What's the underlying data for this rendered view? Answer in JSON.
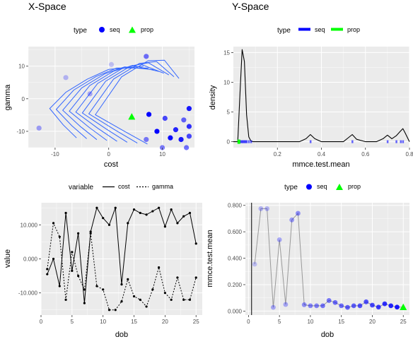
{
  "colors": {
    "panel_bg": "#ebebeb",
    "grid_major": "#ffffff",
    "seq_blue": "#0000ff",
    "prop_green": "#00ff00",
    "contour": "#3366ff",
    "line": "#000000",
    "grey_line": "#999999"
  },
  "chart_data": [
    {
      "id": "x-space",
      "type": "scatter",
      "title": "X-Space",
      "xlabel": "cost",
      "ylabel": "gamma",
      "xlim": [
        -15,
        16
      ],
      "ylim": [
        -15,
        16
      ],
      "xticks": [
        -10,
        0,
        10
      ],
      "yticks": [
        -10,
        0,
        10
      ],
      "legend": {
        "title": "type",
        "position": "top",
        "entries": [
          {
            "label": "seq",
            "shape": "circle",
            "color": "#0000ff"
          },
          {
            "label": "prop",
            "shape": "triangle",
            "color": "#00ff00"
          }
        ]
      },
      "series": [
        {
          "name": "seq",
          "points": [
            {
              "x": 7.0,
              "y": 13.0,
              "alpha": 0.55
            },
            {
              "x": -8.0,
              "y": 6.5,
              "alpha": 0.25
            },
            {
              "x": 0.5,
              "y": 10.5,
              "alpha": 0.2
            },
            {
              "x": -3.5,
              "y": 1.5,
              "alpha": 0.3
            },
            {
              "x": -13.0,
              "y": -9.0,
              "alpha": 0.35
            },
            {
              "x": 7.5,
              "y": -4.8,
              "alpha": 1.0
            },
            {
              "x": 15.0,
              "y": -3.0,
              "alpha": 0.9
            },
            {
              "x": 14.0,
              "y": -6.5,
              "alpha": 0.6
            },
            {
              "x": 10.5,
              "y": -6.0,
              "alpha": 0.7
            },
            {
              "x": 15.0,
              "y": -8.5,
              "alpha": 0.8
            },
            {
              "x": 9.0,
              "y": -10.0,
              "alpha": 1.0
            },
            {
              "x": 12.5,
              "y": -9.5,
              "alpha": 0.85
            },
            {
              "x": 11.5,
              "y": -12.0,
              "alpha": 0.95
            },
            {
              "x": 13.5,
              "y": -12.5,
              "alpha": 0.9
            },
            {
              "x": 15.0,
              "y": -11.5,
              "alpha": 0.7
            },
            {
              "x": 7.0,
              "y": -12.5,
              "alpha": 0.5
            },
            {
              "x": 10.0,
              "y": -15.0,
              "alpha": 0.5
            },
            {
              "x": 14.5,
              "y": -15.0,
              "alpha": 0.55
            }
          ]
        },
        {
          "name": "prop",
          "points": [
            {
              "x": 4.3,
              "y": -5.5
            }
          ]
        }
      ]
    },
    {
      "id": "y-space",
      "type": "line",
      "title": "Y-Space",
      "xlabel": "mmce.test.mean",
      "ylabel": "density",
      "xlim": [
        0.0,
        0.8
      ],
      "ylim": [
        -1,
        16
      ],
      "xticks": [
        0.2,
        0.4,
        0.6,
        0.8
      ],
      "xtick_labels": [
        "0.2",
        "0.4",
        "0.6",
        "0.8"
      ],
      "yticks": [
        0,
        5,
        10,
        15
      ],
      "legend": {
        "title": "type",
        "position": "top",
        "entries": [
          {
            "label": "seq",
            "shape": "line",
            "color": "#0000ff"
          },
          {
            "label": "prop",
            "shape": "line",
            "color": "#00ff00"
          }
        ]
      },
      "density": {
        "x": [
          0.0,
          0.02,
          0.03,
          0.04,
          0.05,
          0.06,
          0.07,
          0.08,
          0.09,
          0.1,
          0.15,
          0.2,
          0.3,
          0.33,
          0.35,
          0.37,
          0.4,
          0.5,
          0.52,
          0.54,
          0.56,
          0.6,
          0.65,
          0.68,
          0.7,
          0.72,
          0.74,
          0.76,
          0.77,
          0.78,
          0.8
        ],
        "y": [
          0.0,
          0.0,
          8.0,
          15.5,
          13.5,
          4.5,
          0.8,
          0.1,
          0.0,
          0.0,
          0.0,
          0.0,
          0.0,
          0.5,
          1.2,
          0.5,
          0.0,
          0.0,
          0.6,
          1.2,
          0.4,
          0.0,
          0.0,
          0.5,
          1.1,
          0.5,
          1.0,
          1.8,
          2.2,
          1.5,
          0.0
        ]
      },
      "rug_seq": [
        0.03,
        0.035,
        0.04,
        0.045,
        0.05,
        0.055,
        0.06,
        0.07,
        0.08,
        0.35,
        0.54,
        0.7,
        0.74,
        0.76,
        0.77
      ],
      "rug_prop": [
        0.025
      ]
    },
    {
      "id": "trace",
      "type": "line",
      "xlabel": "dob",
      "ylabel": "value",
      "xlim": [
        0,
        26
      ],
      "ylim": [
        -16500,
        16500
      ],
      "xticks": [
        0,
        5,
        10,
        15,
        20,
        25
      ],
      "yticks": [
        -10000,
        0,
        10000
      ],
      "ytick_labels": [
        "-10.000",
        "0.000",
        "10.000"
      ],
      "legend": {
        "title": "variable",
        "position": "top",
        "entries": [
          {
            "label": "cost",
            "shape": "solid",
            "color": "#000000"
          },
          {
            "label": "gamma",
            "shape": "dashed",
            "color": "#000000"
          }
        ]
      },
      "x": [
        1,
        2,
        3,
        4,
        5,
        6,
        7,
        8,
        9,
        10,
        11,
        12,
        13,
        14,
        15,
        16,
        17,
        18,
        19,
        20,
        21,
        22,
        23,
        24,
        25
      ],
      "series": [
        {
          "name": "cost",
          "dash": "solid",
          "values": [
            -4500,
            0,
            -8000,
            13500,
            -3500,
            7500,
            -13000,
            8000,
            15000,
            12000,
            10000,
            15000,
            -7500,
            10500,
            14500,
            13500,
            13000,
            14000,
            15000,
            9500,
            14500,
            10500,
            12500,
            13500,
            4500
          ]
        },
        {
          "name": "gamma",
          "dash": "dashed",
          "values": [
            -3000,
            10500,
            6500,
            -12000,
            2000,
            -5000,
            -9000,
            7500,
            -8000,
            -9000,
            -15000,
            -15000,
            -12500,
            -6000,
            -11000,
            -12000,
            -14000,
            -9000,
            -2500,
            -10000,
            -12000,
            -5500,
            -12000,
            -12000,
            -5500
          ]
        }
      ]
    },
    {
      "id": "mmce",
      "type": "scatter",
      "xlabel": "dob",
      "ylabel": "mmce.test.mean",
      "xlim": [
        -0.5,
        26
      ],
      "ylim": [
        -0.03,
        0.82
      ],
      "xticks": [
        0,
        5,
        10,
        15,
        20,
        25
      ],
      "yticks": [
        0.0,
        0.2,
        0.4,
        0.6,
        0.8
      ],
      "ytick_labels": [
        "0.000",
        "0.200",
        "0.400",
        "0.600",
        "0.800"
      ],
      "vline_x": 0.5,
      "legend": {
        "title": "type",
        "position": "top",
        "entries": [
          {
            "label": "seq",
            "shape": "circle",
            "color": "#0000ff"
          },
          {
            "label": "prop",
            "shape": "triangle",
            "color": "#00ff00"
          }
        ]
      },
      "x": [
        1,
        2,
        3,
        4,
        5,
        6,
        7,
        8,
        9,
        10,
        11,
        12,
        13,
        14,
        15,
        16,
        17,
        18,
        19,
        20,
        21,
        22,
        23,
        24,
        25
      ],
      "values": [
        0.355,
        0.775,
        0.775,
        0.028,
        0.54,
        0.05,
        0.69,
        0.74,
        0.048,
        0.04,
        0.04,
        0.04,
        0.08,
        0.065,
        0.04,
        0.028,
        0.04,
        0.04,
        0.07,
        0.045,
        0.03,
        0.055,
        0.04,
        0.03,
        0.03
      ],
      "alphas": [
        0.2,
        0.25,
        0.25,
        0.3,
        0.3,
        0.3,
        0.35,
        0.4,
        0.4,
        0.45,
        0.45,
        0.5,
        0.5,
        0.55,
        0.55,
        0.6,
        0.6,
        0.65,
        0.65,
        0.7,
        0.75,
        0.8,
        0.85,
        0.9,
        1.0
      ],
      "types": [
        "seq",
        "seq",
        "seq",
        "seq",
        "seq",
        "seq",
        "seq",
        "seq",
        "seq",
        "seq",
        "seq",
        "seq",
        "seq",
        "seq",
        "seq",
        "seq",
        "seq",
        "seq",
        "seq",
        "seq",
        "seq",
        "seq",
        "seq",
        "seq",
        "prop"
      ]
    }
  ]
}
